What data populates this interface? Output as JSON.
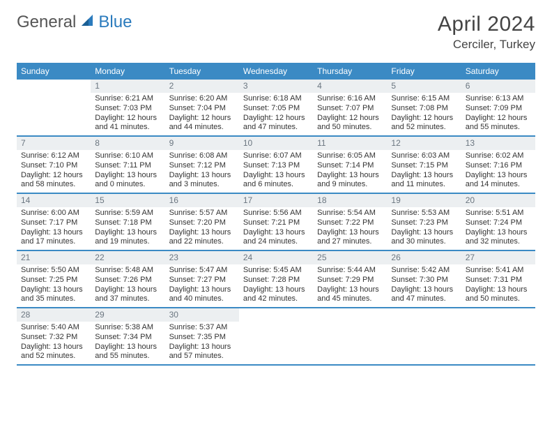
{
  "logo": {
    "general": "General",
    "blue": "Blue"
  },
  "title": {
    "month": "April 2024",
    "location": "Cerciler, Turkey"
  },
  "day_names": [
    "Sunday",
    "Monday",
    "Tuesday",
    "Wednesday",
    "Thursday",
    "Friday",
    "Saturday"
  ],
  "colors": {
    "header_bg": "#3b8ac4",
    "header_text": "#ffffff",
    "datebar_bg": "#eceff1",
    "datebar_text": "#6b7680",
    "border": "#3b8ac4",
    "logo_blue": "#2b7bbd"
  },
  "weeks": [
    [
      null,
      {
        "n": "1",
        "sr": "Sunrise: 6:21 AM",
        "ss": "Sunset: 7:03 PM",
        "d1": "Daylight: 12 hours",
        "d2": "and 41 minutes."
      },
      {
        "n": "2",
        "sr": "Sunrise: 6:20 AM",
        "ss": "Sunset: 7:04 PM",
        "d1": "Daylight: 12 hours",
        "d2": "and 44 minutes."
      },
      {
        "n": "3",
        "sr": "Sunrise: 6:18 AM",
        "ss": "Sunset: 7:05 PM",
        "d1": "Daylight: 12 hours",
        "d2": "and 47 minutes."
      },
      {
        "n": "4",
        "sr": "Sunrise: 6:16 AM",
        "ss": "Sunset: 7:07 PM",
        "d1": "Daylight: 12 hours",
        "d2": "and 50 minutes."
      },
      {
        "n": "5",
        "sr": "Sunrise: 6:15 AM",
        "ss": "Sunset: 7:08 PM",
        "d1": "Daylight: 12 hours",
        "d2": "and 52 minutes."
      },
      {
        "n": "6",
        "sr": "Sunrise: 6:13 AM",
        "ss": "Sunset: 7:09 PM",
        "d1": "Daylight: 12 hours",
        "d2": "and 55 minutes."
      }
    ],
    [
      {
        "n": "7",
        "sr": "Sunrise: 6:12 AM",
        "ss": "Sunset: 7:10 PM",
        "d1": "Daylight: 12 hours",
        "d2": "and 58 minutes."
      },
      {
        "n": "8",
        "sr": "Sunrise: 6:10 AM",
        "ss": "Sunset: 7:11 PM",
        "d1": "Daylight: 13 hours",
        "d2": "and 0 minutes."
      },
      {
        "n": "9",
        "sr": "Sunrise: 6:08 AM",
        "ss": "Sunset: 7:12 PM",
        "d1": "Daylight: 13 hours",
        "d2": "and 3 minutes."
      },
      {
        "n": "10",
        "sr": "Sunrise: 6:07 AM",
        "ss": "Sunset: 7:13 PM",
        "d1": "Daylight: 13 hours",
        "d2": "and 6 minutes."
      },
      {
        "n": "11",
        "sr": "Sunrise: 6:05 AM",
        "ss": "Sunset: 7:14 PM",
        "d1": "Daylight: 13 hours",
        "d2": "and 9 minutes."
      },
      {
        "n": "12",
        "sr": "Sunrise: 6:03 AM",
        "ss": "Sunset: 7:15 PM",
        "d1": "Daylight: 13 hours",
        "d2": "and 11 minutes."
      },
      {
        "n": "13",
        "sr": "Sunrise: 6:02 AM",
        "ss": "Sunset: 7:16 PM",
        "d1": "Daylight: 13 hours",
        "d2": "and 14 minutes."
      }
    ],
    [
      {
        "n": "14",
        "sr": "Sunrise: 6:00 AM",
        "ss": "Sunset: 7:17 PM",
        "d1": "Daylight: 13 hours",
        "d2": "and 17 minutes."
      },
      {
        "n": "15",
        "sr": "Sunrise: 5:59 AM",
        "ss": "Sunset: 7:18 PM",
        "d1": "Daylight: 13 hours",
        "d2": "and 19 minutes."
      },
      {
        "n": "16",
        "sr": "Sunrise: 5:57 AM",
        "ss": "Sunset: 7:20 PM",
        "d1": "Daylight: 13 hours",
        "d2": "and 22 minutes."
      },
      {
        "n": "17",
        "sr": "Sunrise: 5:56 AM",
        "ss": "Sunset: 7:21 PM",
        "d1": "Daylight: 13 hours",
        "d2": "and 24 minutes."
      },
      {
        "n": "18",
        "sr": "Sunrise: 5:54 AM",
        "ss": "Sunset: 7:22 PM",
        "d1": "Daylight: 13 hours",
        "d2": "and 27 minutes."
      },
      {
        "n": "19",
        "sr": "Sunrise: 5:53 AM",
        "ss": "Sunset: 7:23 PM",
        "d1": "Daylight: 13 hours",
        "d2": "and 30 minutes."
      },
      {
        "n": "20",
        "sr": "Sunrise: 5:51 AM",
        "ss": "Sunset: 7:24 PM",
        "d1": "Daylight: 13 hours",
        "d2": "and 32 minutes."
      }
    ],
    [
      {
        "n": "21",
        "sr": "Sunrise: 5:50 AM",
        "ss": "Sunset: 7:25 PM",
        "d1": "Daylight: 13 hours",
        "d2": "and 35 minutes."
      },
      {
        "n": "22",
        "sr": "Sunrise: 5:48 AM",
        "ss": "Sunset: 7:26 PM",
        "d1": "Daylight: 13 hours",
        "d2": "and 37 minutes."
      },
      {
        "n": "23",
        "sr": "Sunrise: 5:47 AM",
        "ss": "Sunset: 7:27 PM",
        "d1": "Daylight: 13 hours",
        "d2": "and 40 minutes."
      },
      {
        "n": "24",
        "sr": "Sunrise: 5:45 AM",
        "ss": "Sunset: 7:28 PM",
        "d1": "Daylight: 13 hours",
        "d2": "and 42 minutes."
      },
      {
        "n": "25",
        "sr": "Sunrise: 5:44 AM",
        "ss": "Sunset: 7:29 PM",
        "d1": "Daylight: 13 hours",
        "d2": "and 45 minutes."
      },
      {
        "n": "26",
        "sr": "Sunrise: 5:42 AM",
        "ss": "Sunset: 7:30 PM",
        "d1": "Daylight: 13 hours",
        "d2": "and 47 minutes."
      },
      {
        "n": "27",
        "sr": "Sunrise: 5:41 AM",
        "ss": "Sunset: 7:31 PM",
        "d1": "Daylight: 13 hours",
        "d2": "and 50 minutes."
      }
    ],
    [
      {
        "n": "28",
        "sr": "Sunrise: 5:40 AM",
        "ss": "Sunset: 7:32 PM",
        "d1": "Daylight: 13 hours",
        "d2": "and 52 minutes."
      },
      {
        "n": "29",
        "sr": "Sunrise: 5:38 AM",
        "ss": "Sunset: 7:34 PM",
        "d1": "Daylight: 13 hours",
        "d2": "and 55 minutes."
      },
      {
        "n": "30",
        "sr": "Sunrise: 5:37 AM",
        "ss": "Sunset: 7:35 PM",
        "d1": "Daylight: 13 hours",
        "d2": "and 57 minutes."
      },
      null,
      null,
      null,
      null
    ]
  ]
}
